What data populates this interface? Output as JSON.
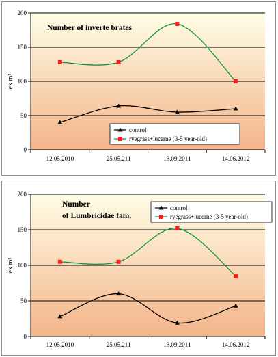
{
  "chart_data": [
    {
      "type": "line",
      "title_lines": [
        "Number of inverte brates"
      ],
      "ylabel": "ex m²",
      "xlabel": "",
      "categories": [
        "12.05.2010",
        "25.05.211",
        "13.09.2011",
        "14.06.2012"
      ],
      "ylim": [
        0,
        200
      ],
      "yticks": [
        0,
        50,
        100,
        150,
        200
      ],
      "grid": true,
      "legend_position": "bottom-right",
      "series": [
        {
          "name": "control",
          "values": [
            40,
            64,
            55,
            60
          ],
          "color": "#000000",
          "marker": "triangle"
        },
        {
          "name": "ryegrass+lucerne (3-5 year-old)",
          "values": [
            128,
            128,
            184,
            100
          ],
          "color": "#009933",
          "marker": "square",
          "marker_color": "#ff1a1a"
        }
      ]
    },
    {
      "type": "line",
      "title_lines": [
        "Number",
        "of Lumbricidae fam."
      ],
      "ylabel": "ex m²",
      "xlabel": "",
      "categories": [
        "12.05.2010",
        "25.05.211",
        "13.09.2011",
        "14.06.2012"
      ],
      "ylim": [
        0,
        200
      ],
      "yticks": [
        0,
        50,
        100,
        150,
        200
      ],
      "grid": true,
      "legend_position": "top-right",
      "series": [
        {
          "name": "control",
          "values": [
            28,
            60,
            19,
            43
          ],
          "color": "#000000",
          "marker": "triangle"
        },
        {
          "name": "ryegrass+lucerne (3-5 year-old)",
          "values": [
            105,
            105,
            152,
            85
          ],
          "color": "#009933",
          "marker": "square",
          "marker_color": "#ff1a1a"
        }
      ]
    }
  ],
  "colors": {
    "plot_top": "#fffde6",
    "plot_bottom": "#f4b48a",
    "gridline": "#000000"
  }
}
